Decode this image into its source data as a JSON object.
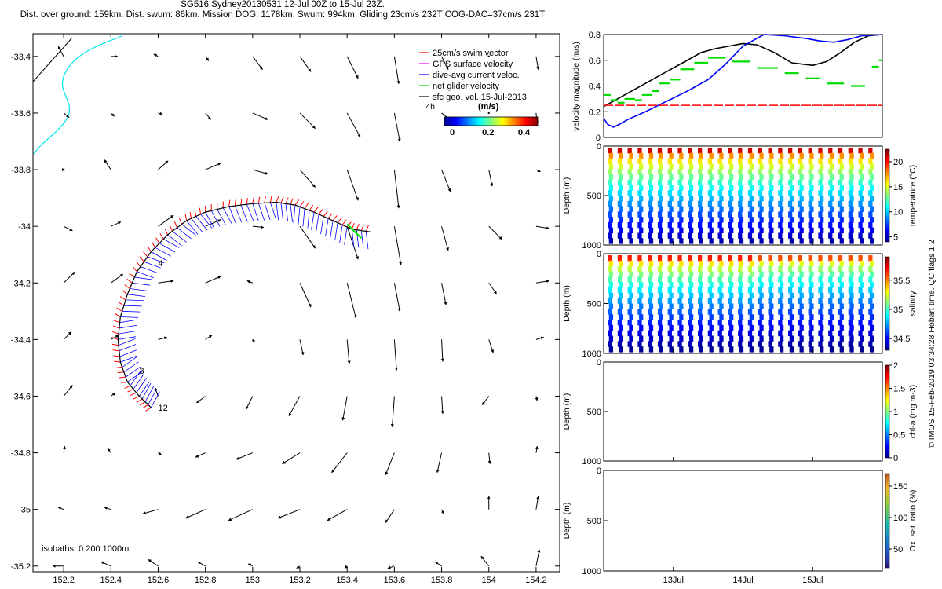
{
  "header": {
    "line1": "SG516 Sydney20130531 12-Jul 00Z to 15-Jul 23Z.",
    "line2": "Dist. over ground: 159km. Dist. swum: 86km. Mission DOG: 1178km. Swum: 994km. Gliding 23cm/s 232T COG-DAC=37cm/s 231T"
  },
  "colors": {
    "swim": "#ff0000",
    "gps": "#ff00ff",
    "dac": "#0000ff",
    "net": "#00dd00",
    "geo": "#000000",
    "coast": "#00e5ee",
    "isobath": "#000000"
  },
  "chart_data": [
    {
      "type": "scatter",
      "name": "track-map",
      "xticks": [
        "152.2",
        "152.4",
        "152.6",
        "152.8",
        "153",
        "153.2",
        "153.4",
        "153.6",
        "153.8",
        "154",
        "154.2"
      ],
      "yticks": [
        "-33.4",
        "-33.6",
        "-33.8",
        "-34",
        "-34.2",
        "-34.4",
        "-34.6",
        "-34.8",
        "-35",
        "-35.2"
      ],
      "xlim": [
        152.07,
        154.3
      ],
      "ylim": [
        -35.22,
        -33.32
      ],
      "legend": [
        {
          "label": "25cm/s swim vector",
          "color": "#ff0000"
        },
        {
          "label": "GPS surface velocity",
          "color": "#ff00ff"
        },
        {
          "label": "dive-avg current veloc.",
          "color": "#0000ff"
        },
        {
          "label": "net glider velocity",
          "color": "#00dd00"
        },
        {
          "label": "sfc geo. vel. 15-Jul-2013",
          "color": "#000000"
        }
      ],
      "scale_label": "4h",
      "colorbar_unit": "(m/s)",
      "colorbar_ticks": [
        "0",
        "0.2",
        "0.4"
      ],
      "isobath_label": "isobaths: 0   200  1000m",
      "day_labels": [
        {
          "text": "4",
          "lon": 152.58,
          "lat": -34.13
        },
        {
          "text": "3",
          "lon": 152.5,
          "lat": -34.51
        },
        {
          "text": "12",
          "lon": 152.58,
          "lat": -34.64
        }
      ],
      "track": [
        [
          152.57,
          -34.64
        ],
        [
          152.52,
          -34.6
        ],
        [
          152.47,
          -34.55
        ],
        [
          152.44,
          -34.48
        ],
        [
          152.43,
          -34.4
        ],
        [
          152.44,
          -34.32
        ],
        [
          152.47,
          -34.24
        ],
        [
          152.51,
          -34.16
        ],
        [
          152.57,
          -34.09
        ],
        [
          152.64,
          -34.03
        ],
        [
          152.72,
          -33.98
        ],
        [
          152.8,
          -33.95
        ],
        [
          152.9,
          -33.93
        ],
        [
          153.0,
          -33.92
        ],
        [
          153.1,
          -33.915
        ],
        [
          153.18,
          -33.925
        ],
        [
          153.26,
          -33.95
        ],
        [
          153.34,
          -33.98
        ],
        [
          153.42,
          -34.01
        ],
        [
          153.5,
          -34.02
        ]
      ],
      "geo_vectors_note": "surface geostrophic velocity field on a regular grid (east-north cm/s, estimated)",
      "geo_vectors": [
        [
          152.2,
          -33.4,
          -5,
          9
        ],
        [
          152.4,
          -33.4,
          6,
          0
        ],
        [
          152.6,
          -33.4,
          -4,
          2
        ],
        [
          152.8,
          -33.4,
          3,
          -4
        ],
        [
          153.0,
          -33.4,
          9,
          -12
        ],
        [
          153.2,
          -33.4,
          10,
          -14
        ],
        [
          153.4,
          -33.4,
          10,
          -20
        ],
        [
          153.6,
          -33.4,
          4,
          -25
        ],
        [
          153.8,
          -33.4,
          6,
          -12
        ],
        [
          154.0,
          -33.4,
          0,
          0
        ],
        [
          154.2,
          -33.4,
          2,
          -12
        ],
        [
          152.2,
          -33.6,
          5,
          -4
        ],
        [
          152.4,
          -33.6,
          3,
          -3
        ],
        [
          152.6,
          -33.6,
          4,
          -1
        ],
        [
          152.8,
          -33.6,
          5,
          -6
        ],
        [
          153.0,
          -33.6,
          14,
          -6
        ],
        [
          153.2,
          -33.6,
          14,
          -14
        ],
        [
          153.4,
          -33.6,
          12,
          -22
        ],
        [
          153.6,
          -33.6,
          5,
          -26
        ],
        [
          153.8,
          -33.6,
          9,
          -7
        ],
        [
          154.0,
          -33.6,
          0,
          0
        ],
        [
          154.2,
          -33.6,
          1,
          -10
        ],
        [
          152.2,
          -33.8,
          1,
          0
        ],
        [
          152.4,
          -33.8,
          -6,
          9
        ],
        [
          152.6,
          -33.8,
          9,
          8
        ],
        [
          152.8,
          -33.8,
          14,
          6
        ],
        [
          153.0,
          -33.8,
          14,
          -4
        ],
        [
          153.2,
          -33.8,
          14,
          -16
        ],
        [
          153.4,
          -33.8,
          10,
          -28
        ],
        [
          153.6,
          -33.8,
          4,
          -35
        ],
        [
          153.8,
          -33.8,
          8,
          -20
        ],
        [
          154.0,
          -33.8,
          3,
          -15
        ],
        [
          154.2,
          -33.8,
          4,
          -2
        ],
        [
          152.2,
          -34.0,
          8,
          -4
        ],
        [
          152.4,
          -34.0,
          9,
          4
        ],
        [
          152.6,
          -34.0,
          14,
          10
        ],
        [
          152.8,
          -34.0,
          14,
          6
        ],
        [
          153.0,
          -34.0,
          10,
          -1
        ],
        [
          153.2,
          -34.0,
          14,
          -20
        ],
        [
          153.4,
          -34.0,
          10,
          -30
        ],
        [
          153.6,
          -34.0,
          6,
          -35
        ],
        [
          153.8,
          -34.0,
          6,
          -22
        ],
        [
          154.0,
          -34.0,
          12,
          -12
        ],
        [
          154.2,
          -34.0,
          12,
          -2
        ],
        [
          152.2,
          -34.2,
          10,
          10
        ],
        [
          152.4,
          -34.2,
          11,
          8
        ],
        [
          152.6,
          -34.2,
          14,
          2
        ],
        [
          152.8,
          -34.2,
          14,
          6
        ],
        [
          153.0,
          -34.2,
          -5,
          2
        ],
        [
          153.2,
          -34.2,
          10,
          -22
        ],
        [
          153.4,
          -34.2,
          8,
          -32
        ],
        [
          153.6,
          -34.2,
          5,
          -26
        ],
        [
          153.8,
          -34.2,
          4,
          -20
        ],
        [
          154.0,
          -34.2,
          7,
          -10
        ],
        [
          154.2,
          -34.2,
          12,
          2
        ],
        [
          152.2,
          -34.4,
          7,
          7
        ],
        [
          152.4,
          -34.4,
          7,
          4
        ],
        [
          152.6,
          -34.4,
          8,
          2
        ],
        [
          152.8,
          -34.4,
          6,
          4
        ],
        [
          153.0,
          -34.4,
          2,
          -2
        ],
        [
          153.2,
          -34.4,
          3,
          -14
        ],
        [
          153.4,
          -34.4,
          2,
          -22
        ],
        [
          153.6,
          -34.4,
          2,
          -28
        ],
        [
          153.8,
          -34.4,
          1,
          -20
        ],
        [
          154.0,
          -34.4,
          4,
          -12
        ],
        [
          154.2,
          -34.4,
          7,
          2
        ],
        [
          152.2,
          -34.6,
          8,
          10
        ],
        [
          152.4,
          -34.6,
          4,
          3
        ],
        [
          152.6,
          -34.6,
          -3,
          8
        ],
        [
          152.8,
          -34.6,
          -8,
          -6
        ],
        [
          153.0,
          -34.6,
          -6,
          -12
        ],
        [
          153.2,
          -34.6,
          -10,
          -18
        ],
        [
          153.4,
          -34.6,
          -4,
          -22
        ],
        [
          153.6,
          -34.6,
          -2,
          -28
        ],
        [
          153.8,
          -34.6,
          1,
          -16
        ],
        [
          154.0,
          -34.6,
          -6,
          -8
        ],
        [
          154.2,
          -34.6,
          1,
          -4
        ],
        [
          152.2,
          -34.8,
          1,
          6
        ],
        [
          152.4,
          -34.8,
          -3,
          4
        ],
        [
          152.6,
          -34.8,
          3,
          -2
        ],
        [
          152.8,
          -34.8,
          -9,
          -4
        ],
        [
          153.0,
          -34.8,
          -15,
          -6
        ],
        [
          153.2,
          -34.8,
          -16,
          -10
        ],
        [
          153.4,
          -34.8,
          -14,
          -18
        ],
        [
          153.6,
          -34.8,
          -8,
          -20
        ],
        [
          153.8,
          -34.8,
          -4,
          -18
        ],
        [
          154.0,
          -34.8,
          1,
          -10
        ],
        [
          154.2,
          -34.8,
          1,
          6
        ],
        [
          152.2,
          -35.0,
          -5,
          2
        ],
        [
          152.4,
          -35.0,
          -6,
          2
        ],
        [
          152.6,
          -35.0,
          -14,
          -4
        ],
        [
          152.8,
          -35.0,
          -18,
          -8
        ],
        [
          153.0,
          -35.0,
          -22,
          -10
        ],
        [
          153.2,
          -35.0,
          -20,
          -8
        ],
        [
          153.4,
          -35.0,
          -18,
          -10
        ],
        [
          153.6,
          -35.0,
          -8,
          -12
        ],
        [
          153.8,
          -35.0,
          2,
          -4
        ],
        [
          154.0,
          -35.0,
          0,
          12
        ],
        [
          154.2,
          -35.0,
          2,
          12
        ],
        [
          152.2,
          -35.2,
          -10,
          0
        ],
        [
          152.4,
          -35.2,
          -9,
          4
        ],
        [
          152.6,
          -35.2,
          -9,
          6
        ],
        [
          152.8,
          -35.2,
          -7,
          4
        ],
        [
          153.0,
          -35.2,
          -4,
          2
        ],
        [
          153.2,
          -35.2,
          -3,
          -2
        ],
        [
          153.4,
          -35.2,
          -2,
          -2
        ],
        [
          153.6,
          -35.2,
          -6,
          -2
        ],
        [
          153.8,
          -35.2,
          -6,
          4
        ],
        [
          154.0,
          -35.2,
          -7,
          9
        ],
        [
          154.2,
          -35.2,
          3,
          15
        ]
      ]
    },
    {
      "type": "line",
      "name": "velocity-panel",
      "ylabel": "velocity magnitude (m/s)",
      "ylim": [
        0,
        0.8
      ],
      "yticks": [
        "0",
        "0.2",
        "0.4",
        "0.6",
        "0.8"
      ],
      "xlim": [
        12.0,
        16.0
      ],
      "series": [
        {
          "color": "#000000",
          "x": [
            12.0,
            12.3,
            12.6,
            12.9,
            13.2,
            13.4,
            13.6,
            13.8,
            14.0,
            14.2,
            14.45,
            14.7,
            15.0,
            15.2,
            15.4,
            15.6,
            15.8,
            16.0
          ],
          "y": [
            0.24,
            0.33,
            0.42,
            0.51,
            0.6,
            0.66,
            0.69,
            0.71,
            0.73,
            0.72,
            0.66,
            0.58,
            0.56,
            0.59,
            0.66,
            0.74,
            0.79,
            0.8
          ]
        },
        {
          "color": "#0000ff",
          "x": [
            12.0,
            12.06,
            12.14,
            12.22,
            12.35,
            12.6,
            12.9,
            13.2,
            13.5,
            13.75,
            14.0,
            14.3,
            14.6,
            14.9,
            15.1,
            15.3,
            15.5,
            15.7,
            16.0
          ],
          "y": [
            0.15,
            0.1,
            0.08,
            0.1,
            0.14,
            0.2,
            0.28,
            0.36,
            0.45,
            0.57,
            0.71,
            0.8,
            0.79,
            0.77,
            0.75,
            0.74,
            0.76,
            0.79,
            0.8
          ]
        },
        {
          "color": "#ff0000",
          "x": [
            12.0,
            16.0
          ],
          "y": [
            0.25,
            0.25
          ]
        },
        {
          "color": "#00dd00",
          "steps": [
            [
              12.0,
              12.1,
              0.33
            ],
            [
              12.1,
              12.2,
              0.29
            ],
            [
              12.2,
              12.3,
              0.27
            ],
            [
              12.3,
              12.45,
              0.3
            ],
            [
              12.45,
              12.55,
              0.29
            ],
            [
              12.55,
              12.7,
              0.33
            ],
            [
              12.7,
              12.8,
              0.36
            ],
            [
              12.8,
              12.95,
              0.42
            ],
            [
              12.95,
              13.1,
              0.45
            ],
            [
              13.1,
              13.3,
              0.53
            ],
            [
              13.3,
              13.5,
              0.58
            ],
            [
              13.5,
              13.75,
              0.62
            ],
            [
              13.85,
              14.1,
              0.59
            ],
            [
              14.2,
              14.5,
              0.54
            ],
            [
              14.6,
              14.8,
              0.5
            ],
            [
              14.9,
              15.1,
              0.46
            ],
            [
              15.2,
              15.45,
              0.42
            ],
            [
              15.55,
              15.75,
              0.4
            ],
            [
              15.85,
              15.95,
              0.55
            ],
            [
              15.95,
              16.0,
              0.6
            ]
          ]
        }
      ]
    },
    {
      "type": "heatmap",
      "name": "temperature-panel",
      "ylabel": "Depth (m)",
      "yticks": [
        "0",
        "500",
        "1000"
      ],
      "colorbar_label": "temperature (°C)",
      "colorbar_ticks": [
        "5",
        "10",
        "15",
        "20"
      ],
      "clim": [
        4,
        22.5
      ],
      "surface_values": [
        20.5,
        22
      ],
      "deep_values": [
        4.5,
        5
      ]
    },
    {
      "type": "heatmap",
      "name": "salinity-panel",
      "ylabel": "Depth (m)",
      "yticks": [
        "0",
        "500",
        "1000"
      ],
      "colorbar_label": "salinity",
      "colorbar_ticks": [
        "34.5",
        "35",
        "35.5"
      ],
      "clim": [
        34.3,
        35.9
      ]
    },
    {
      "type": "heatmap",
      "name": "chlorophyll-panel",
      "ylabel": "Depth (m)",
      "yticks": [
        "0",
        "500",
        "1000"
      ],
      "colorbar_label": "chl-a (mg m-3)",
      "colorbar_ticks": [
        "0",
        "0.5",
        "1",
        "1.5",
        "2"
      ],
      "clim": [
        0,
        2
      ]
    },
    {
      "type": "heatmap",
      "name": "oxygen-panel",
      "ylabel": "Depth (m)",
      "yticks": [
        "0",
        "500",
        "1000"
      ],
      "colorbar_label": "Ox. sat. ratio (%)",
      "colorbar_ticks": [
        "50",
        "100",
        "150"
      ],
      "clim": [
        20,
        170
      ],
      "xticks": [
        "13Jul",
        "14Jul",
        "15Jul"
      ]
    }
  ],
  "side_note": "© IMOS 15-Feb-2019 03:34:28 Hobart time. QC flags 1  2"
}
